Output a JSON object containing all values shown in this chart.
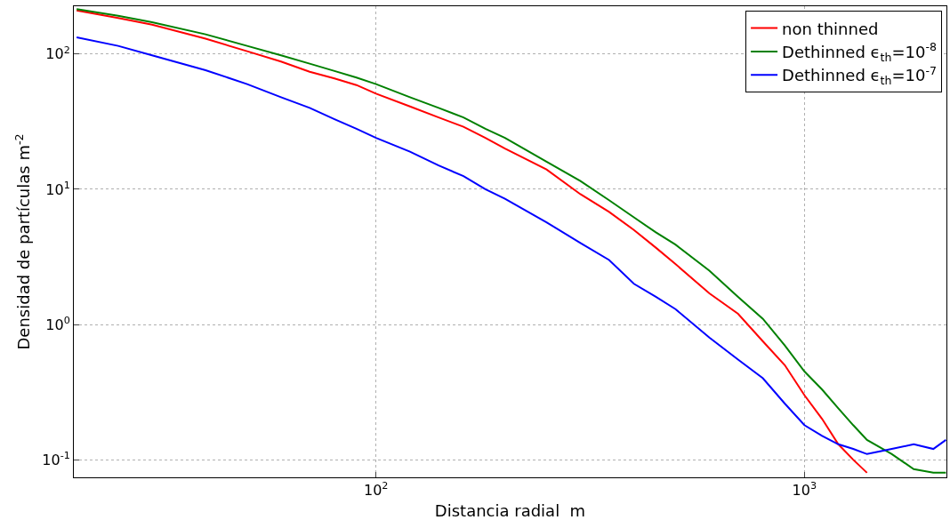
{
  "chart_data": {
    "type": "line",
    "xlabel": "Distancia radial  m",
    "ylabel": "Densidad de partículas m$^{-2}$",
    "log": "xy",
    "grid": true,
    "legend": "top right",
    "xlim": [
      19.7,
      2146
    ],
    "ylim": [
      0.074,
      226
    ],
    "xticks": [
      {
        "value": 100,
        "label": "10$^{2}$"
      },
      {
        "value": 1000,
        "label": "10$^{3}$"
      }
    ],
    "yticks": [
      {
        "value": 0.1,
        "label": "10$^{-1}$"
      },
      {
        "value": 1,
        "label": "10$^{0}$"
      },
      {
        "value": 10,
        "label": "10$^{1}$"
      },
      {
        "value": 100,
        "label": "10$^{2}$"
      }
    ],
    "x": [
      20,
      25,
      30,
      40,
      50,
      60,
      70,
      80,
      90,
      100,
      120,
      140,
      160,
      180,
      200,
      250,
      300,
      350,
      400,
      450,
      500,
      600,
      700,
      800,
      900,
      1000,
      1100,
      1200,
      1300,
      1400,
      1600,
      1800,
      2000,
      2140
    ],
    "series": [
      {
        "name": "non thinned",
        "color": "#ff0000",
        "values": [
          210,
          185,
          165,
          130,
          105,
          88,
          74,
          66,
          59,
          51,
          41,
          34,
          29,
          24,
          20,
          14,
          9.2,
          6.8,
          5.0,
          3.7,
          2.8,
          1.7,
          1.2,
          0.75,
          0.5,
          0.3,
          0.2,
          0.13,
          0.1,
          0.08,
          null,
          null,
          null,
          null
        ]
      },
      {
        "name": "Dethinned ϵ$_{th}$=10$^{-8}$",
        "color": "#008000",
        "values": [
          215,
          192,
          172,
          140,
          115,
          98,
          85,
          75,
          67,
          60,
          48,
          40,
          34,
          28,
          24,
          16,
          11.5,
          8.3,
          6.2,
          4.8,
          3.9,
          2.5,
          1.6,
          1.1,
          0.7,
          0.45,
          0.33,
          0.24,
          0.18,
          0.14,
          0.11,
          0.085,
          0.08,
          0.08
        ]
      },
      {
        "name": "Dethinned ϵ$_{th}$=10$^{-7}$",
        "color": "#0000ff",
        "values": [
          133,
          115,
          98,
          76,
          60,
          48,
          40,
          33,
          28,
          24,
          19,
          15,
          12.5,
          10,
          8.5,
          5.7,
          4.0,
          3.0,
          2.0,
          1.6,
          1.3,
          0.8,
          0.55,
          0.4,
          0.26,
          0.18,
          0.15,
          0.13,
          0.12,
          0.11,
          0.12,
          0.13,
          0.12,
          0.14
        ]
      }
    ]
  }
}
